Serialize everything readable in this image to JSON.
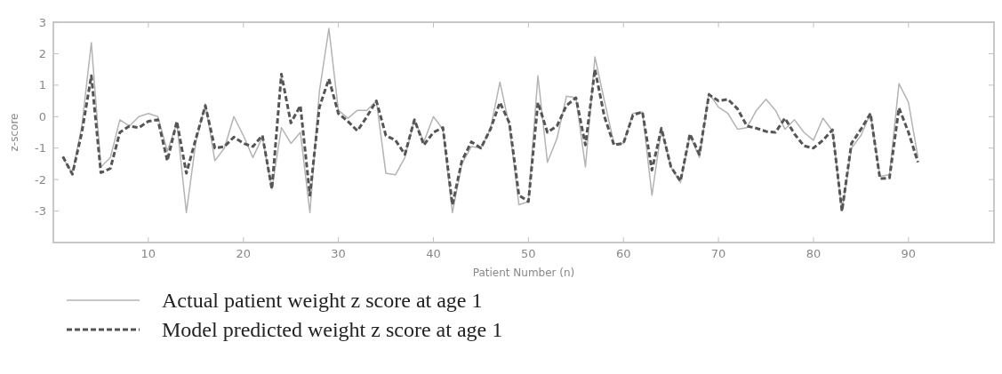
{
  "chart_data": {
    "type": "line",
    "xlabel": "Patient Number (n)",
    "ylabel": "z-score",
    "x": [
      1,
      2,
      3,
      4,
      5,
      6,
      7,
      8,
      9,
      10,
      11,
      12,
      13,
      14,
      15,
      16,
      17,
      18,
      19,
      20,
      21,
      22,
      23,
      24,
      25,
      26,
      27,
      28,
      29,
      30,
      31,
      32,
      33,
      34,
      35,
      36,
      37,
      38,
      39,
      40,
      41,
      42,
      43,
      44,
      45,
      46,
      47,
      48,
      49,
      50,
      51,
      52,
      53,
      54,
      55,
      56,
      57,
      58,
      59,
      60,
      61,
      62,
      63,
      64,
      65,
      66,
      67,
      68,
      69,
      70,
      71,
      72,
      73,
      74,
      75,
      76,
      77,
      78,
      79,
      80,
      81,
      82,
      83,
      84,
      85,
      86,
      87,
      88,
      89,
      90,
      91
    ],
    "xlim": [
      0,
      99
    ],
    "xticks": [
      10,
      20,
      30,
      40,
      50,
      60,
      70,
      80,
      90
    ],
    "ylim": [
      -4,
      3
    ],
    "yticks": [
      -3,
      -2,
      -1,
      0,
      1,
      2,
      3
    ],
    "grid": false,
    "legend": "bottom",
    "marker": "none",
    "series": [
      {
        "name": "Actual patient weight z score at age 1",
        "color": "#b4b4b4",
        "line_style": "solid",
        "values": [
          -1.3,
          -1.8,
          -0.3,
          2.35,
          -1.6,
          -1.3,
          -0.1,
          -0.3,
          0.0,
          0.1,
          0.0,
          -1.1,
          -0.2,
          -3.05,
          -0.8,
          0.4,
          -1.4,
          -1.0,
          0.0,
          -0.6,
          -1.3,
          -0.65,
          -2.3,
          -0.35,
          -0.85,
          -0.5,
          -3.05,
          0.8,
          2.8,
          0.2,
          -0.05,
          0.2,
          0.2,
          0.5,
          -1.8,
          -1.85,
          -1.3,
          -0.1,
          -0.8,
          0.0,
          -0.4,
          -3.05,
          -1.5,
          -0.95,
          -1.0,
          -0.4,
          1.1,
          -0.3,
          -2.8,
          -2.7,
          1.3,
          -1.45,
          -0.7,
          0.65,
          0.6,
          -1.6,
          1.9,
          0.5,
          -0.85,
          -0.85,
          0.1,
          0.15,
          -2.5,
          -0.4,
          -1.6,
          -2.1,
          -0.6,
          -1.3,
          0.75,
          0.3,
          0.1,
          -0.4,
          -0.35,
          0.2,
          0.55,
          0.2,
          -0.4,
          -0.1,
          -0.5,
          -0.75,
          -0.05,
          -0.45,
          -3.0,
          -1.0,
          -0.6,
          0.1,
          -1.9,
          -1.85,
          1.05,
          0.45,
          -1.3
        ]
      },
      {
        "name": "Model predicted weight z score at age 1",
        "color": "#555555",
        "line_style": "dashed",
        "values": [
          -1.27,
          -1.83,
          -0.5,
          1.3,
          -1.78,
          -1.65,
          -0.5,
          -0.3,
          -0.35,
          -0.15,
          -0.1,
          -1.4,
          -0.15,
          -1.8,
          -0.7,
          0.35,
          -1.0,
          -0.95,
          -0.65,
          -0.85,
          -0.95,
          -0.6,
          -2.3,
          1.35,
          -0.2,
          0.35,
          -2.5,
          0.3,
          1.2,
          0.1,
          -0.15,
          -0.45,
          0.0,
          0.5,
          -0.6,
          -0.75,
          -1.2,
          -0.1,
          -0.9,
          -0.5,
          -0.35,
          -2.8,
          -1.4,
          -0.8,
          -1.0,
          -0.4,
          0.45,
          -0.2,
          -2.5,
          -2.7,
          0.45,
          -0.5,
          -0.3,
          0.35,
          0.6,
          -0.9,
          1.5,
          0.0,
          -0.9,
          -0.85,
          0.05,
          0.15,
          -1.7,
          -0.37,
          -1.6,
          -2.05,
          -0.55,
          -1.2,
          0.7,
          0.5,
          0.55,
          0.25,
          -0.3,
          -0.37,
          -0.47,
          -0.5,
          -0.05,
          -0.55,
          -0.93,
          -1.0,
          -0.75,
          -0.42,
          -3.0,
          -0.85,
          -0.4,
          0.1,
          -1.97,
          -1.95,
          0.28,
          -0.5,
          -1.45
        ]
      }
    ]
  }
}
